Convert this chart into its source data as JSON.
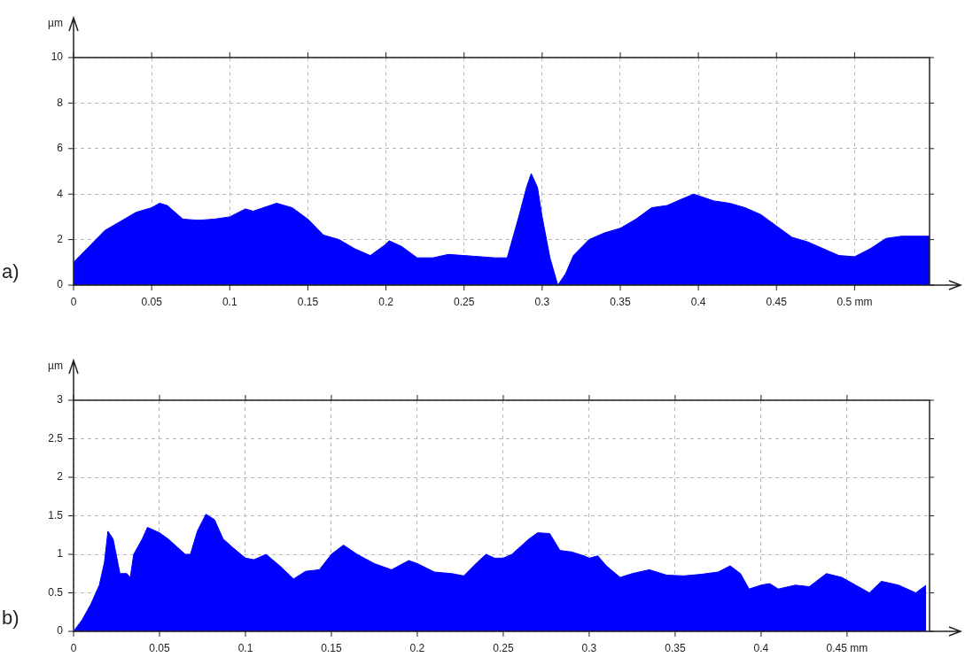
{
  "chart_data": [
    {
      "type": "area",
      "ylabel": "µm",
      "annotations": [
        "a)"
      ],
      "grid": true,
      "legend": false,
      "xlim": [
        0,
        0.548
      ],
      "ylim": [
        0,
        10
      ],
      "xticks": [
        0,
        0.05,
        0.1,
        0.15,
        0.2,
        0.25,
        0.3,
        0.35,
        0.4,
        0.45,
        {
          "value": 0.5,
          "label": "0.5 mm"
        }
      ],
      "yticks": [
        0,
        2,
        4,
        6,
        8,
        10
      ],
      "series": [
        {
          "color": "#0000ff",
          "x": [
            0,
            0.01,
            0.02,
            0.03,
            0.04,
            0.05,
            0.055,
            0.06,
            0.07,
            0.08,
            0.09,
            0.1,
            0.11,
            0.115,
            0.13,
            0.14,
            0.15,
            0.16,
            0.17,
            0.18,
            0.19,
            0.2,
            0.202,
            0.21,
            0.22,
            0.23,
            0.24,
            0.25,
            0.27,
            0.2776,
            0.285,
            0.29,
            0.293,
            0.297,
            0.3,
            0.305,
            0.31,
            0.315,
            0.32,
            0.33,
            0.34,
            0.35,
            0.36,
            0.37,
            0.38,
            0.39,
            0.397,
            0.41,
            0.42,
            0.43,
            0.44,
            0.45,
            0.46,
            0.47,
            0.48,
            0.49,
            0.5,
            0.51,
            0.52,
            0.53,
            0.548
          ],
          "values": [
            1.0,
            1.7,
            2.4,
            2.8,
            3.2,
            3.4,
            3.6,
            3.5,
            2.9,
            2.85,
            2.9,
            3.0,
            3.35,
            3.25,
            3.6,
            3.4,
            2.9,
            2.2,
            2.0,
            1.6,
            1.3,
            1.8,
            1.95,
            1.7,
            1.2,
            1.2,
            1.35,
            1.3,
            1.2,
            1.2,
            3.0,
            4.3,
            4.9,
            4.3,
            3.0,
            1.2,
            0,
            0.5,
            1.3,
            2.0,
            2.3,
            2.5,
            2.9,
            3.4,
            3.5,
            3.8,
            4.0,
            3.7,
            3.6,
            3.4,
            3.1,
            2.6,
            2.1,
            1.9,
            1.6,
            1.3,
            1.25,
            1.6,
            2.05,
            2.15,
            2.15
          ]
        }
      ]
    },
    {
      "type": "area",
      "ylabel": "µm",
      "annotations": [
        "b)"
      ],
      "grid": true,
      "legend": false,
      "xlim": [
        0,
        0.498
      ],
      "ylim": [
        0,
        3
      ],
      "xticks": [
        0,
        0.05,
        0.1,
        0.15,
        0.2,
        0.25,
        0.3,
        0.35,
        0.4,
        {
          "value": 0.45,
          "label": "0.45 mm"
        }
      ],
      "yticks": [
        0,
        0.5,
        1,
        1.5,
        2,
        2.5,
        3
      ],
      "series": [
        {
          "color": "#0000ff",
          "x": [
            0,
            0.005,
            0.01,
            0.015,
            0.018,
            0.02,
            0.023,
            0.027,
            0.031,
            0.033,
            0.035,
            0.04,
            0.043,
            0.05,
            0.055,
            0.06,
            0.065,
            0.068,
            0.072,
            0.077,
            0.082,
            0.087,
            0.092,
            0.1,
            0.105,
            0.112,
            0.12,
            0.128,
            0.135,
            0.143,
            0.15,
            0.157,
            0.165,
            0.175,
            0.185,
            0.195,
            0.2,
            0.21,
            0.22,
            0.227,
            0.235,
            0.24,
            0.245,
            0.25,
            0.255,
            0.26,
            0.265,
            0.27,
            0.277,
            0.283,
            0.29,
            0.297,
            0.3,
            0.305,
            0.31,
            0.318,
            0.325,
            0.335,
            0.345,
            0.355,
            0.365,
            0.375,
            0.382,
            0.388,
            0.393,
            0.4,
            0.405,
            0.41,
            0.42,
            0.428,
            0.438,
            0.447,
            0.455,
            0.463,
            0.47,
            0.48,
            0.49,
            0.496
          ],
          "values": [
            0,
            0.15,
            0.35,
            0.6,
            0.9,
            1.3,
            1.2,
            0.75,
            0.75,
            0.7,
            1.0,
            1.2,
            1.35,
            1.28,
            1.2,
            1.1,
            1.0,
            1.0,
            1.3,
            1.52,
            1.45,
            1.2,
            1.1,
            0.95,
            0.93,
            1.0,
            0.85,
            0.68,
            0.78,
            0.8,
            1.0,
            1.12,
            1.0,
            0.88,
            0.8,
            0.92,
            0.88,
            0.77,
            0.75,
            0.72,
            0.9,
            1.0,
            0.95,
            0.95,
            1.0,
            1.1,
            1.2,
            1.28,
            1.27,
            1.05,
            1.03,
            0.98,
            0.95,
            0.98,
            0.85,
            0.7,
            0.75,
            0.8,
            0.73,
            0.72,
            0.74,
            0.77,
            0.85,
            0.75,
            0.55,
            0.6,
            0.62,
            0.55,
            0.6,
            0.58,
            0.75,
            0.7,
            0.6,
            0.5,
            0.65,
            0.6,
            0.5,
            0.6
          ]
        }
      ]
    }
  ]
}
